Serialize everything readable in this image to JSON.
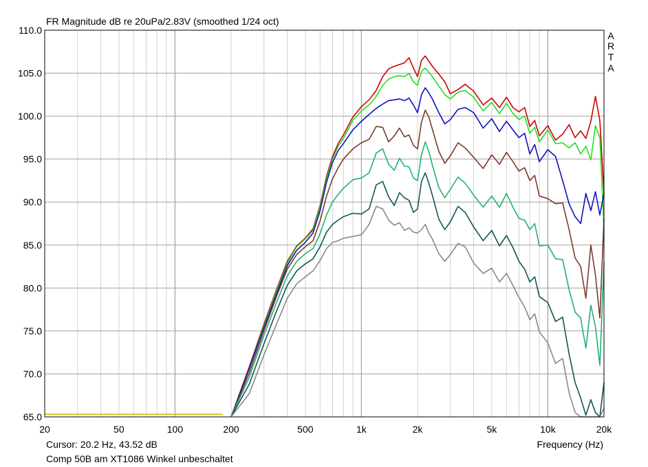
{
  "chart_data": {
    "type": "line",
    "title": "FR Magnitude dB re 20uPa/2.83V (smoothed 1/24 oct)",
    "watermark": [
      "A",
      "R",
      "T",
      "A"
    ],
    "xlabel": "Frequency (Hz)",
    "ylabel": "",
    "x_scale": "log",
    "xlim": [
      20,
      20000
    ],
    "ylim": [
      65,
      110
    ],
    "grid": true,
    "legend": "none",
    "x_ticks": [
      {
        "value": 20,
        "label": "20"
      },
      {
        "value": 50,
        "label": "50"
      },
      {
        "value": 100,
        "label": "100"
      },
      {
        "value": 200,
        "label": "200"
      },
      {
        "value": 500,
        "label": "500"
      },
      {
        "value": 1000,
        "label": "1k"
      },
      {
        "value": 2000,
        "label": "2k"
      },
      {
        "value": 5000,
        "label": "5k"
      },
      {
        "value": 10000,
        "label": "10k"
      },
      {
        "value": 20000,
        "label": "20k"
      }
    ],
    "y_ticks": [
      "65.0",
      "70.0",
      "75.0",
      "80.0",
      "85.0",
      "90.0",
      "95.0",
      "100.0",
      "105.0",
      "110.0"
    ],
    "y_tick_values": [
      65,
      70,
      75,
      80,
      85,
      90,
      95,
      100,
      105,
      110
    ],
    "cursor_text": "Cursor: 20.2 Hz, 43.52 dB",
    "caption": "Comp 50B am XT1086 Winkel unbeschaltet",
    "colors": {
      "frame": "#000000",
      "grid_major": "#a0a0a0",
      "grid_minor": "#d0d0d0",
      "background": "#ffffff"
    },
    "series": [
      {
        "color": "#c8c800",
        "x": [
          20,
          100,
          180
        ],
        "y": [
          65.3,
          65.3,
          65.3
        ]
      },
      {
        "color": "#cc0000",
        "x": [
          200,
          250,
          300,
          350,
          400,
          450,
          500,
          550,
          600,
          650,
          700,
          750,
          800,
          900,
          1000,
          1100,
          1200,
          1300,
          1400,
          1500,
          1600,
          1700,
          1800,
          1900,
          2000,
          2100,
          2200,
          2300,
          2400,
          2600,
          2800,
          3000,
          3300,
          3600,
          4000,
          4500,
          5000,
          5500,
          6000,
          6500,
          7000,
          7500,
          8000,
          8500,
          9000,
          10000,
          11000,
          12000,
          13000,
          14000,
          15000,
          16000,
          17000,
          18000,
          19000,
          20000
        ],
        "y": [
          65,
          70.8,
          75.8,
          79.8,
          83.1,
          84.9,
          85.8,
          86.9,
          89.6,
          93.0,
          95.3,
          96.8,
          97.8,
          99.9,
          101.1,
          101.9,
          103.0,
          104.6,
          105.5,
          105.8,
          106.0,
          106.2,
          106.8,
          105.6,
          104.6,
          106.5,
          107.0,
          106.4,
          105.8,
          104.9,
          104.0,
          102.6,
          103.1,
          103.7,
          102.9,
          101.3,
          102.1,
          101.0,
          102.2,
          101.0,
          100.5,
          101.0,
          98.8,
          99.5,
          97.7,
          98.9,
          97.2,
          97.9,
          99.0,
          97.5,
          98.3,
          97.4,
          99.4,
          102.3,
          99.5,
          91.0
        ]
      },
      {
        "color": "#22dd22",
        "x": [
          200,
          250,
          300,
          350,
          400,
          450,
          500,
          550,
          600,
          650,
          700,
          750,
          800,
          900,
          1000,
          1100,
          1200,
          1300,
          1400,
          1500,
          1600,
          1700,
          1800,
          1900,
          2000,
          2100,
          2200,
          2300,
          2400,
          2600,
          2800,
          3000,
          3300,
          3600,
          4000,
          4500,
          5000,
          5500,
          6000,
          6500,
          7000,
          7500,
          8000,
          8500,
          9000,
          10000,
          11000,
          12000,
          13000,
          14000,
          15000,
          16000,
          17000,
          18000,
          19000,
          20000
        ],
        "y": [
          65,
          70.6,
          75.6,
          79.6,
          82.9,
          84.8,
          85.7,
          86.7,
          89.4,
          92.7,
          95.0,
          96.5,
          97.4,
          99.5,
          100.6,
          101.3,
          102.3,
          103.6,
          104.3,
          104.6,
          104.7,
          104.6,
          105.0,
          104.0,
          103.6,
          105.2,
          105.6,
          105.1,
          104.6,
          103.5,
          102.5,
          102.0,
          102.8,
          103.0,
          102.2,
          100.6,
          101.6,
          100.3,
          101.5,
          100.3,
          99.6,
          100.0,
          98.0,
          98.7,
          97.0,
          98.4,
          96.8,
          96.9,
          96.3,
          96.9,
          95.6,
          96.5,
          94.9,
          98.9,
          97.5,
          87.0
        ]
      },
      {
        "color": "#1010bb",
        "x": [
          200,
          250,
          300,
          350,
          400,
          450,
          500,
          550,
          600,
          650,
          700,
          750,
          800,
          900,
          1000,
          1100,
          1200,
          1300,
          1400,
          1500,
          1600,
          1700,
          1800,
          1900,
          2000,
          2100,
          2200,
          2300,
          2400,
          2600,
          2800,
          3000,
          3300,
          3600,
          4000,
          4500,
          5000,
          5500,
          6000,
          6500,
          7000,
          7500,
          8000,
          8500,
          9000,
          10000,
          11000,
          12000,
          13000,
          14000,
          15000,
          16000,
          17000,
          18000,
          19000,
          20000
        ],
        "y": [
          65,
          70.6,
          75.4,
          79.3,
          82.6,
          84.4,
          85.3,
          86.4,
          89.0,
          92.3,
          94.6,
          96.0,
          96.8,
          98.4,
          99.4,
          100.2,
          100.9,
          101.4,
          101.8,
          101.9,
          102.0,
          101.8,
          102.1,
          101.3,
          100.4,
          102.5,
          103.3,
          102.7,
          102.0,
          100.4,
          99.1,
          99.6,
          100.8,
          101.0,
          100.4,
          98.6,
          99.7,
          98.2,
          99.4,
          98.4,
          97.5,
          98.0,
          95.6,
          96.7,
          94.7,
          96.1,
          95.3,
          92.5,
          89.8,
          88.3,
          87.5,
          91.0,
          89.0,
          91.2,
          88.5,
          91.0
        ]
      },
      {
        "color": "#7a3a2a",
        "x": [
          200,
          250,
          300,
          350,
          400,
          450,
          500,
          550,
          600,
          650,
          700,
          750,
          800,
          900,
          1000,
          1100,
          1200,
          1300,
          1400,
          1500,
          1600,
          1700,
          1800,
          1900,
          2000,
          2100,
          2200,
          2300,
          2400,
          2600,
          2800,
          3000,
          3300,
          3600,
          4000,
          4500,
          5000,
          5500,
          6000,
          6500,
          7000,
          7500,
          8000,
          8500,
          9000,
          10000,
          11000,
          12000,
          13000,
          14000,
          15000,
          16000,
          17000,
          18000,
          19000,
          20000
        ],
        "y": [
          65,
          70.1,
          75.0,
          79.0,
          82.2,
          83.9,
          84.8,
          85.5,
          87.8,
          90.7,
          92.7,
          94.0,
          95.0,
          96.2,
          96.9,
          97.3,
          98.8,
          98.7,
          97.0,
          97.7,
          98.6,
          97.6,
          97.8,
          96.6,
          96.2,
          99.3,
          100.7,
          99.9,
          98.5,
          95.9,
          94.5,
          95.4,
          96.9,
          96.3,
          95.2,
          93.9,
          95.5,
          94.4,
          95.8,
          94.7,
          93.6,
          94.0,
          92.5,
          93.1,
          90.7,
          90.4,
          89.8,
          89.9,
          86.8,
          83.5,
          82.5,
          78.8,
          85.0,
          81.5,
          76.5,
          88.0
        ]
      },
      {
        "color": "#22b070",
        "x": [
          200,
          250,
          300,
          350,
          400,
          450,
          500,
          550,
          600,
          650,
          700,
          750,
          800,
          900,
          1000,
          1100,
          1200,
          1300,
          1400,
          1500,
          1600,
          1700,
          1800,
          1900,
          2000,
          2100,
          2200,
          2300,
          2400,
          2600,
          2800,
          3000,
          3300,
          3600,
          4000,
          4500,
          5000,
          5500,
          6000,
          6500,
          7000,
          7500,
          8000,
          8500,
          9000,
          10000,
          11000,
          12000,
          13000,
          14000,
          15000,
          16000,
          17000,
          18000,
          19000,
          20000
        ],
        "y": [
          65,
          69.6,
          74.5,
          78.3,
          81.4,
          83.1,
          84.0,
          84.6,
          86.3,
          88.5,
          90.0,
          90.9,
          91.6,
          92.6,
          92.8,
          93.4,
          95.7,
          96.2,
          94.4,
          93.7,
          95.1,
          94.2,
          94.1,
          92.8,
          92.5,
          95.5,
          97.0,
          95.9,
          94.3,
          91.7,
          90.5,
          91.5,
          92.9,
          92.2,
          90.8,
          89.4,
          90.7,
          89.4,
          91.0,
          89.4,
          88.1,
          87.9,
          86.8,
          87.5,
          84.9,
          85.0,
          83.4,
          83.3,
          79.8,
          77.2,
          76.5,
          73.0,
          78.0,
          75.5,
          71.0,
          83.0
        ]
      },
      {
        "color": "#115555",
        "x": [
          200,
          250,
          300,
          350,
          400,
          450,
          500,
          550,
          600,
          650,
          700,
          750,
          800,
          900,
          1000,
          1100,
          1200,
          1300,
          1400,
          1500,
          1600,
          1700,
          1800,
          1900,
          2000,
          2100,
          2200,
          2300,
          2400,
          2600,
          2800,
          3000,
          3300,
          3600,
          4000,
          4500,
          5000,
          5500,
          6000,
          6500,
          7000,
          7500,
          8000,
          8500,
          9000,
          10000,
          11000,
          12000,
          13000,
          14000,
          15000,
          16000,
          17000,
          18000,
          19000,
          20000
        ],
        "y": [
          65,
          68.8,
          73.5,
          77.3,
          80.3,
          82.0,
          82.8,
          83.4,
          84.8,
          86.5,
          87.4,
          87.9,
          88.3,
          88.7,
          88.6,
          89.2,
          92.0,
          92.4,
          90.6,
          89.6,
          91.1,
          90.5,
          90.2,
          88.8,
          89.2,
          92.4,
          93.4,
          92.2,
          90.8,
          88.0,
          86.8,
          87.7,
          89.5,
          88.8,
          87.1,
          85.5,
          86.7,
          84.9,
          86.1,
          84.7,
          83.1,
          82.2,
          80.7,
          81.3,
          79.0,
          78.3,
          76.1,
          76.6,
          72.3,
          69.0,
          67.2,
          65.2,
          67.0,
          65.5,
          65.0,
          69.0
        ]
      },
      {
        "color": "#888888",
        "x": [
          200,
          250,
          300,
          350,
          400,
          450,
          500,
          550,
          600,
          650,
          700,
          750,
          800,
          900,
          1000,
          1100,
          1200,
          1300,
          1400,
          1500,
          1600,
          1700,
          1800,
          1900,
          2000,
          2100,
          2200,
          2300,
          2400,
          2600,
          2800,
          3000,
          3300,
          3600,
          4000,
          4500,
          5000,
          5500,
          6000,
          6500,
          7000,
          7500,
          8000,
          8500,
          9000,
          10000,
          11000,
          12000,
          13000,
          14000,
          15000,
          16000,
          17000,
          18000,
          19000,
          20000
        ],
        "y": [
          65,
          67.7,
          72.2,
          75.8,
          78.8,
          80.5,
          81.3,
          82.0,
          83.2,
          84.6,
          85.3,
          85.5,
          85.8,
          86.0,
          86.2,
          87.4,
          89.5,
          89.2,
          87.9,
          87.3,
          87.6,
          86.7,
          87.0,
          86.5,
          86.4,
          86.8,
          87.4,
          86.4,
          85.7,
          84.0,
          83.1,
          83.9,
          85.2,
          84.8,
          82.9,
          81.7,
          82.3,
          80.7,
          81.7,
          80.3,
          78.9,
          77.8,
          76.3,
          77.0,
          74.9,
          73.6,
          71.2,
          71.8,
          67.8,
          65.5,
          65.0,
          65.0,
          65.0,
          65.0,
          65.0,
          66.0
        ]
      }
    ]
  }
}
